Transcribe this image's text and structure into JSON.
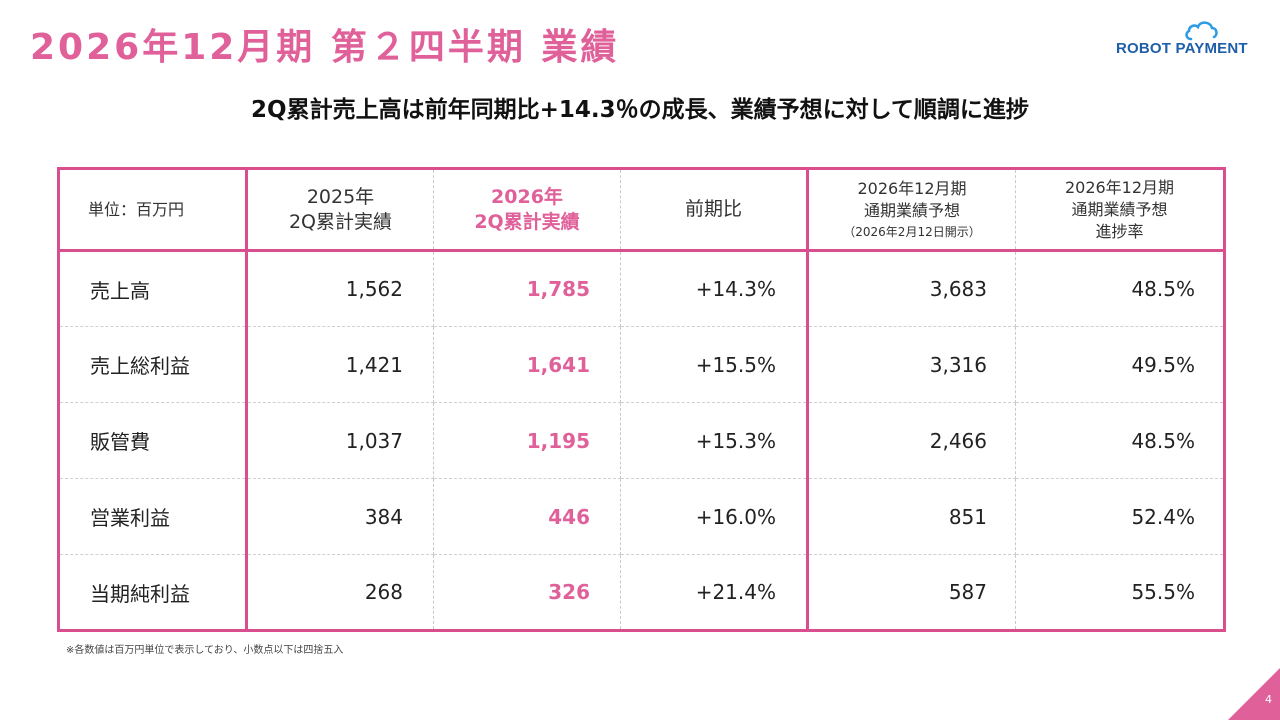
{
  "title": "2026年12月期 第２四半期 業績",
  "logo": {
    "text": "ROBOT PAYMENT",
    "brand_color": "#1f5ea8",
    "cloud_color": "#2f9be3"
  },
  "subtitle": "2Q累計売上高は前年同期比+14.3％の成長、業績予想に対して順調に進捗",
  "accent_color": "#e0609a",
  "table": {
    "unit_label": "単位：百万円",
    "headers": [
      {
        "line1": "2025年",
        "line2": "2Q累計実績"
      },
      {
        "line1": "2026年",
        "line2": "2Q累計実績"
      },
      {
        "line1": "前期比"
      },
      {
        "line1": "2026年12月期",
        "line2": "通期業績予想",
        "line3": "（2026年2月12日開示）"
      },
      {
        "line1": "2026年12月期",
        "line2": "通期業績予想",
        "line3": "進捗率"
      }
    ],
    "rows": [
      {
        "label": "売上高",
        "prev": "1,562",
        "curr": "1,785",
        "yoy": "+14.3%",
        "forecast": "3,683",
        "progress": "48.5%"
      },
      {
        "label": "売上総利益",
        "prev": "1,421",
        "curr": "1,641",
        "yoy": "+15.5%",
        "forecast": "3,316",
        "progress": "49.5%"
      },
      {
        "label": "販管費",
        "prev": "1,037",
        "curr": "1,195",
        "yoy": "+15.3%",
        "forecast": "2,466",
        "progress": "48.5%"
      },
      {
        "label": "営業利益",
        "prev": "384",
        "curr": "446",
        "yoy": "+16.0%",
        "forecast": "851",
        "progress": "52.4%"
      },
      {
        "label": "当期純利益",
        "prev": "268",
        "curr": "326",
        "yoy": "+21.4%",
        "forecast": "587",
        "progress": "55.5%"
      }
    ]
  },
  "note": "※各数値は百万円単位で表示しており、小数点以下は四捨五入",
  "page_number": "4"
}
